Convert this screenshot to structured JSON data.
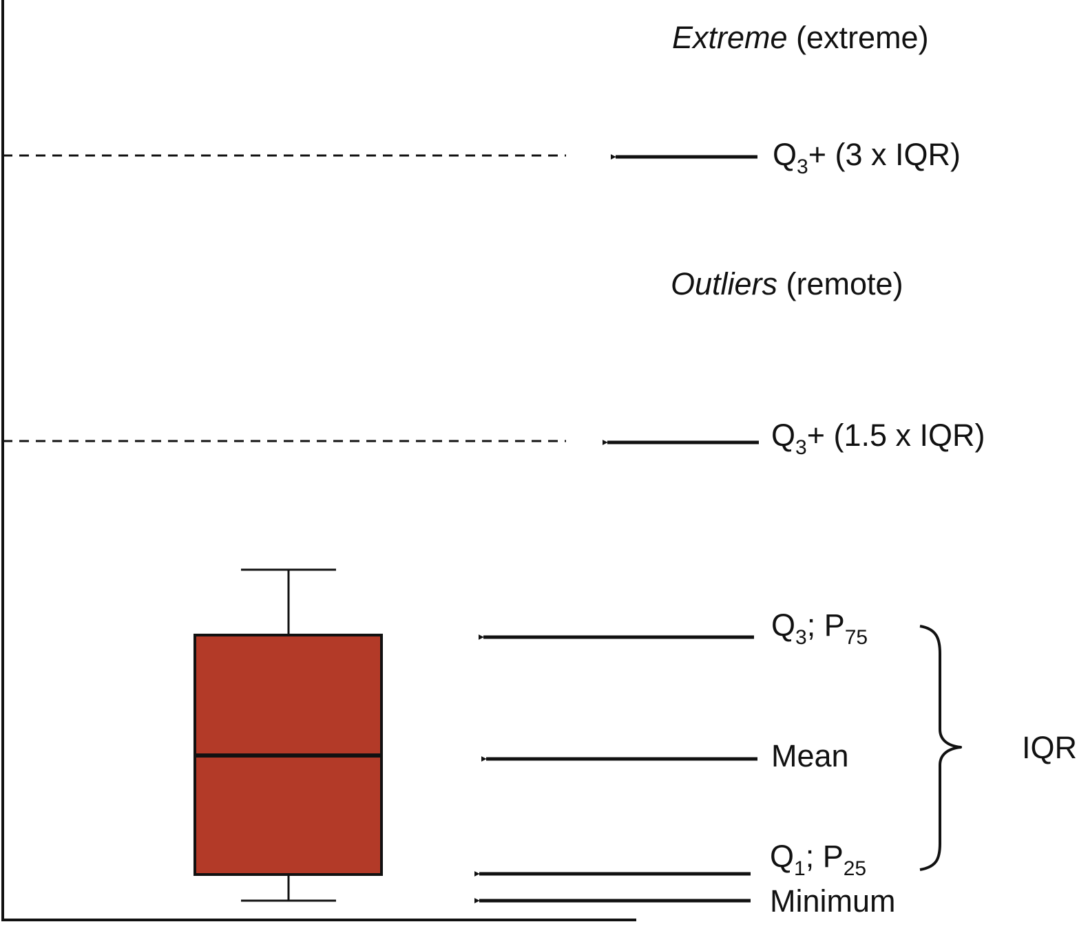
{
  "labels": {
    "extreme": {
      "italic": "Extreme",
      "rest": " (extreme)"
    },
    "q3_3iqr": {
      "q": "Q",
      "sub": "3",
      "rest": "+ (3 x IQR)"
    },
    "outliers": {
      "italic": "Outliers",
      "rest": " (remote)"
    },
    "q3_15iqr": {
      "q": "Q",
      "sub": "3",
      "rest": "+ (1.5 x IQR)"
    },
    "q3_p75": {
      "q": "Q",
      "q_sub": "3",
      "mid": "; P",
      "p_sub": "75"
    },
    "mean": "Mean",
    "iqr": "IQR",
    "q1_p25": {
      "q": "Q",
      "q_sub": "1",
      "mid": "; P",
      "p_sub": "25"
    },
    "minimum": "Minimum"
  },
  "colors": {
    "box_fill": "#B33A28",
    "stroke": "#111111",
    "background": "#ffffff"
  }
}
